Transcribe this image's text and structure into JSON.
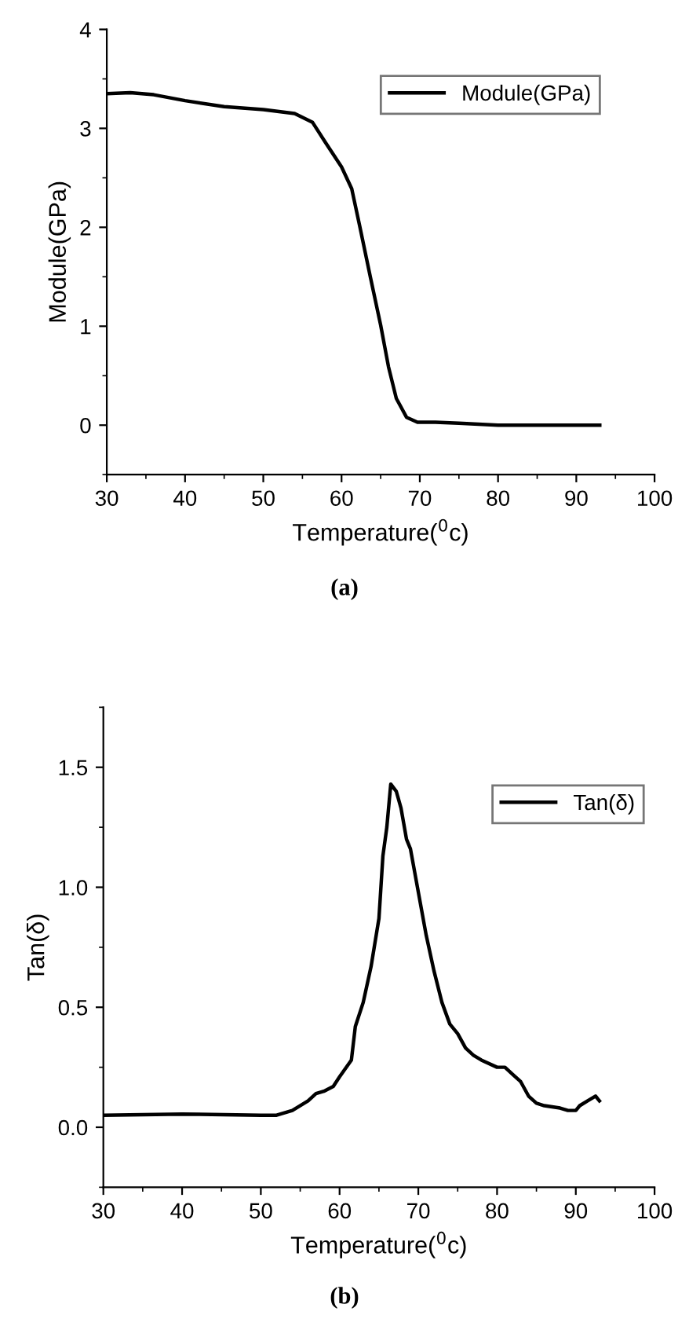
{
  "chart_data": [
    {
      "type": "line",
      "xlabel": "Temperature($^{0}$c)",
      "ylabel": "Module(GPa)",
      "annotations": [
        "(a)"
      ],
      "x": [
        30,
        33,
        36,
        40,
        45,
        50,
        54,
        56.3,
        58,
        60,
        61.3,
        62.3,
        63.7,
        65,
        66,
        67,
        68.3,
        69.7,
        72,
        75,
        80,
        85,
        93
      ],
      "series": [
        {
          "name": "Module(GPa)",
          "color": "#000000",
          "values": [
            3.35,
            3.36,
            3.34,
            3.28,
            3.22,
            3.19,
            3.15,
            3.06,
            2.85,
            2.61,
            2.39,
            2.02,
            1.49,
            1.01,
            0.59,
            0.27,
            0.08,
            0.03,
            0.03,
            0.02,
            0.0,
            0.0,
            0.0
          ]
        }
      ],
      "xlim": [
        30,
        100
      ],
      "xticks": [
        30,
        40,
        50,
        60,
        70,
        80,
        90,
        100
      ],
      "ylim": [
        -0.5,
        4
      ],
      "yticks": [
        0,
        1,
        2,
        3,
        4
      ],
      "grid": false,
      "legend": "top right",
      "line_style": "solid",
      "marker": "none"
    },
    {
      "type": "line",
      "xlabel": "Temperature($^{0}$c)",
      "ylabel": "Tan(δ)",
      "annotations": [
        "(b)"
      ],
      "x": [
        30,
        40,
        50,
        52,
        54,
        56,
        57,
        58,
        59.2,
        60,
        61.5,
        62,
        63,
        64,
        65,
        65.5,
        66,
        66.5,
        67.2,
        67.8,
        68.5,
        69,
        70,
        71,
        72,
        73,
        74,
        75,
        76,
        77,
        78,
        80,
        81,
        82,
        83,
        84,
        85,
        86,
        88,
        89,
        90,
        90.5,
        91.5,
        92.5,
        93
      ],
      "series": [
        {
          "name": "Tan(δ)",
          "color": "#000000",
          "values": [
            0.05,
            0.055,
            0.05,
            0.05,
            0.07,
            0.11,
            0.14,
            0.15,
            0.17,
            0.21,
            0.28,
            0.42,
            0.52,
            0.67,
            0.87,
            1.13,
            1.25,
            1.43,
            1.4,
            1.33,
            1.2,
            1.16,
            0.98,
            0.8,
            0.65,
            0.52,
            0.43,
            0.39,
            0.33,
            0.3,
            0.28,
            0.25,
            0.25,
            0.22,
            0.19,
            0.13,
            0.1,
            0.09,
            0.08,
            0.07,
            0.07,
            0.09,
            0.11,
            0.13,
            0.11
          ]
        }
      ],
      "xlim": [
        30,
        100
      ],
      "xticks": [
        30,
        40,
        50,
        60,
        70,
        80,
        90,
        100
      ],
      "ylim": [
        -0.25,
        1.75
      ],
      "yticks": [
        {
          "value": 0,
          "label": "0.0"
        },
        {
          "value": 0.5,
          "label": "0.5"
        },
        {
          "value": 1.0,
          "label": "1.0"
        },
        {
          "value": 1.5,
          "label": "1.5"
        }
      ],
      "grid": false,
      "legend": "top right",
      "line_style": "solid",
      "marker": "none"
    }
  ]
}
